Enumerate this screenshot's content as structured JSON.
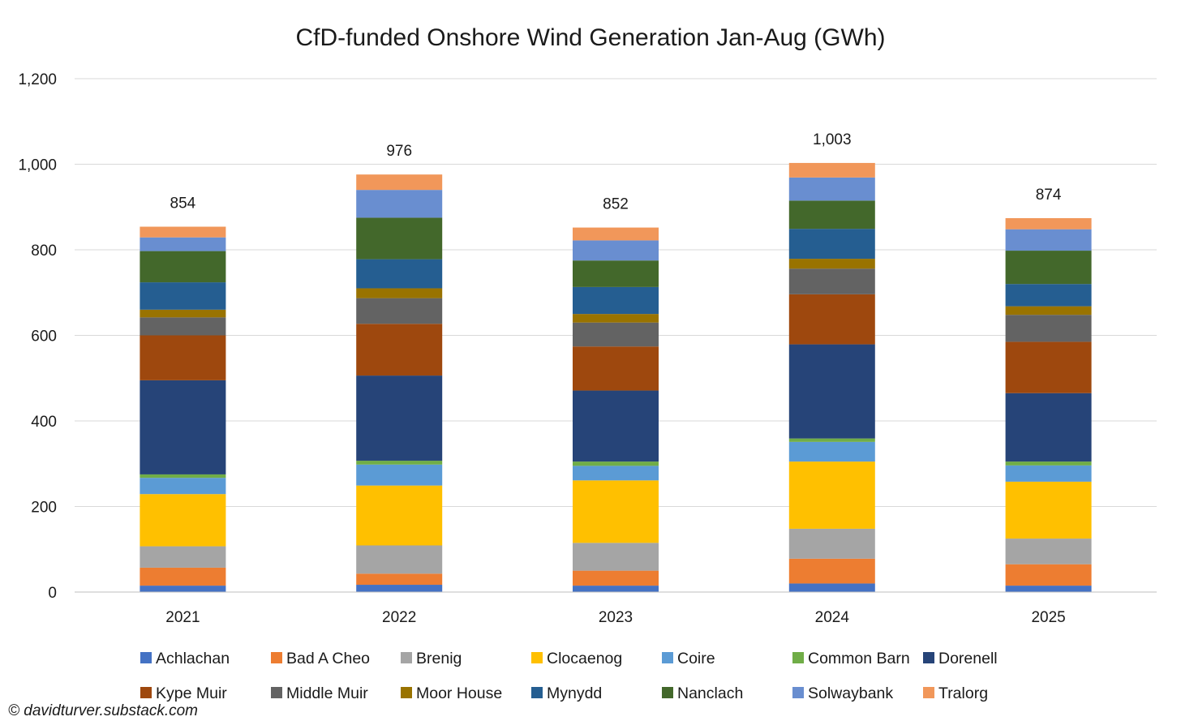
{
  "chart_data": {
    "type": "bar",
    "stacked": true,
    "title": "CfD-funded Onshore Wind Generation Jan-Aug (GWh)",
    "xlabel": "",
    "ylabel": "",
    "ylim": [
      0,
      1200
    ],
    "yticks": [
      0,
      200,
      400,
      600,
      800,
      1000,
      1200
    ],
    "ytick_labels": [
      "0",
      "200",
      "400",
      "600",
      "800",
      "1,000",
      "1,200"
    ],
    "grid": true,
    "legend_position": "bottom",
    "categories": [
      "2021",
      "2022",
      "2023",
      "2024",
      "2025"
    ],
    "totals": [
      854,
      976,
      852,
      1003,
      874
    ],
    "total_labels": [
      "854",
      "976",
      "852",
      "1,003",
      "874"
    ],
    "series": [
      {
        "name": "Achlachan",
        "color": "#4472c4",
        "values": [
          15,
          17,
          15,
          20,
          15
        ]
      },
      {
        "name": "Bad A Cheo",
        "color": "#ed7d31",
        "values": [
          42,
          26,
          35,
          58,
          50
        ]
      },
      {
        "name": "Brenig",
        "color": "#a5a5a5",
        "values": [
          50,
          66,
          65,
          70,
          60
        ]
      },
      {
        "name": "Clocaenog",
        "color": "#ffc000",
        "values": [
          122,
          140,
          146,
          157,
          133
        ]
      },
      {
        "name": "Coire",
        "color": "#5b9bd5",
        "values": [
          38,
          49,
          34,
          46,
          38
        ]
      },
      {
        "name": "Common Barn",
        "color": "#70ad47",
        "values": [
          8,
          9,
          10,
          8,
          9
        ]
      },
      {
        "name": "Dorenell",
        "color": "#264478",
        "values": [
          220,
          199,
          166,
          220,
          160
        ]
      },
      {
        "name": "Kype Muir",
        "color": "#9e480e",
        "values": [
          105,
          121,
          103,
          117,
          120
        ]
      },
      {
        "name": "Middle Muir",
        "color": "#636363",
        "values": [
          42,
          60,
          56,
          60,
          63
        ]
      },
      {
        "name": "Moor House",
        "color": "#997300",
        "values": [
          18,
          23,
          20,
          23,
          20
        ]
      },
      {
        "name": "Mynydd",
        "color": "#255e91",
        "values": [
          64,
          68,
          63,
          70,
          52
        ]
      },
      {
        "name": "Nanclach",
        "color": "#43682b",
        "values": [
          73,
          97,
          62,
          66,
          78
        ]
      },
      {
        "name": "Solwaybank",
        "color": "#698ed0",
        "values": [
          32,
          65,
          47,
          54,
          50
        ]
      },
      {
        "name": "Tralorg",
        "color": "#f1975a",
        "values": [
          25,
          36,
          30,
          34,
          26
        ]
      }
    ]
  },
  "footer": {
    "copyright": "© davidturver.substack.com"
  }
}
